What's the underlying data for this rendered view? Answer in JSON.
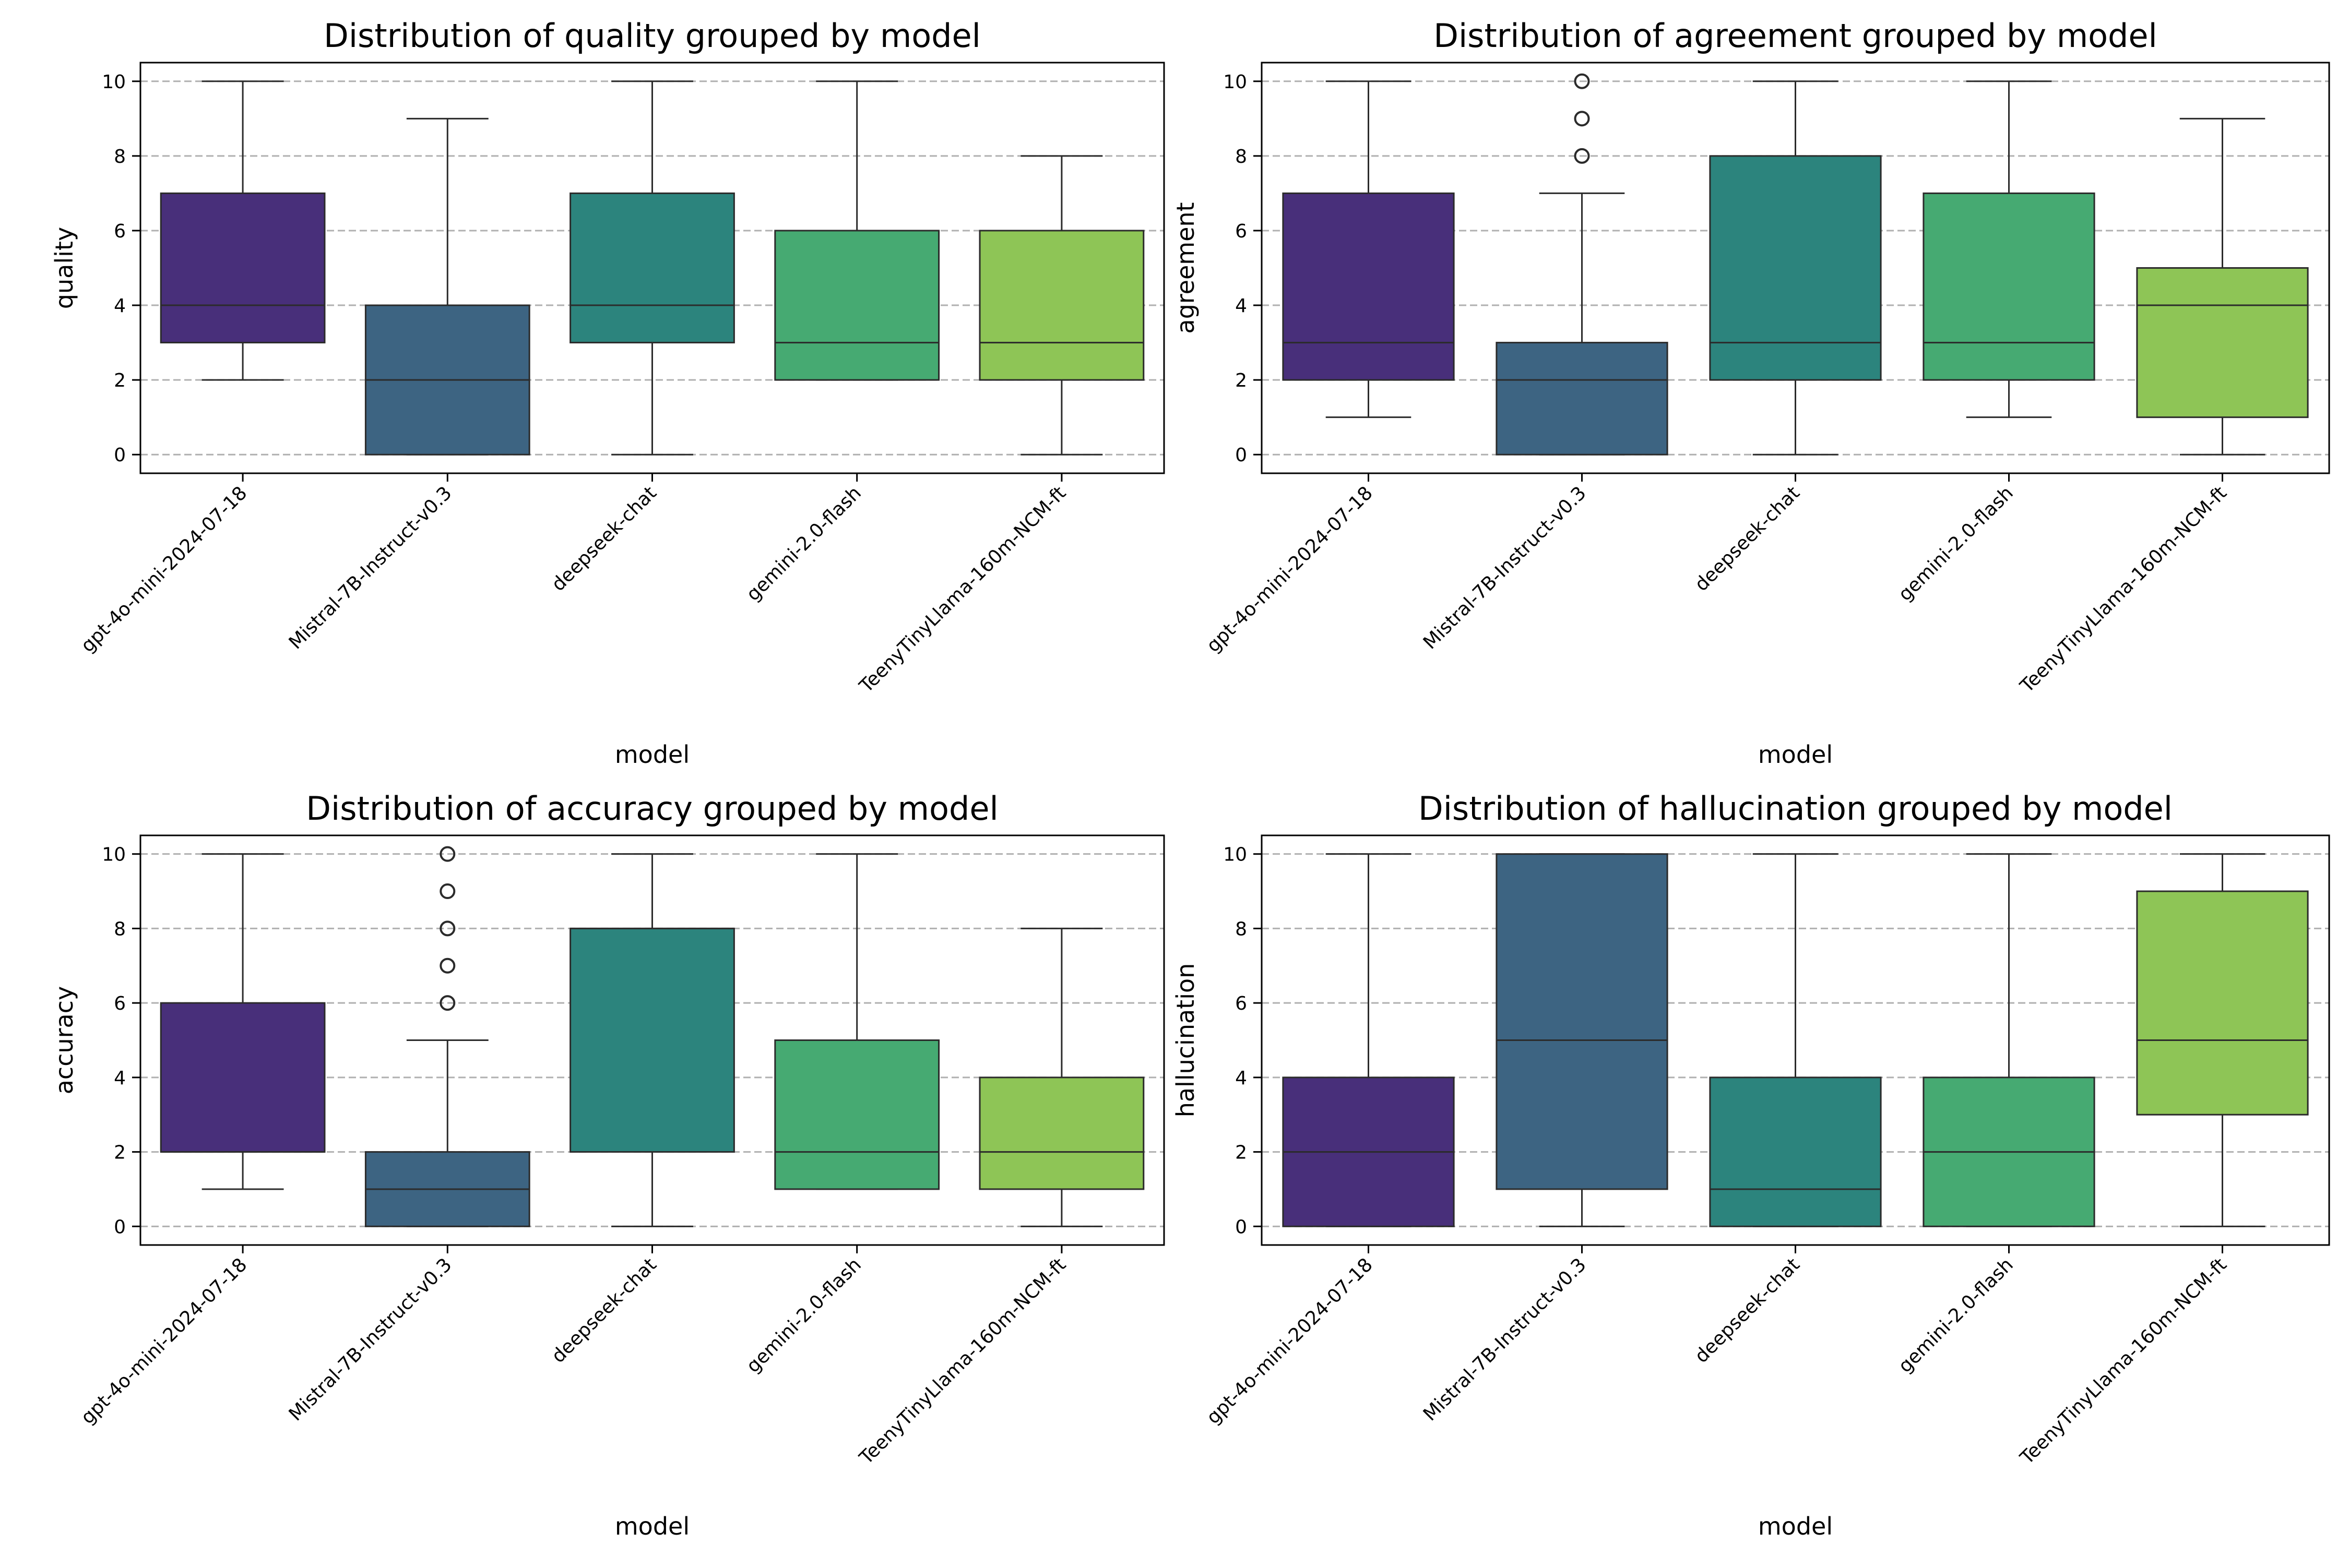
{
  "chart_data": [
    {
      "type": "box",
      "title": "Distribution of quality grouped by model",
      "xlabel": "model",
      "ylabel": "quality",
      "ylim": [
        -0.5,
        10.5
      ],
      "yticks": [
        0,
        2,
        4,
        6,
        8,
        10
      ],
      "grid": "y-dashed",
      "categories": [
        "gpt-4o-mini-2024-07-18",
        "Mistral-7B-Instruct-v0.3",
        "deepseek-chat",
        "gemini-2.0-flash",
        "TeenyTinyLlama-160m-NCM-ft"
      ],
      "boxes": [
        {
          "whisker_low": 2,
          "q1": 3,
          "median": 4,
          "q3": 7,
          "whisker_high": 10,
          "outliers": []
        },
        {
          "whisker_low": 0,
          "q1": 0,
          "median": 2,
          "q3": 4,
          "whisker_high": 9,
          "outliers": []
        },
        {
          "whisker_low": 0,
          "q1": 3,
          "median": 4,
          "q3": 7,
          "whisker_high": 10,
          "outliers": []
        },
        {
          "whisker_low": 2,
          "q1": 2,
          "median": 3,
          "q3": 6,
          "whisker_high": 10,
          "outliers": []
        },
        {
          "whisker_low": 0,
          "q1": 2,
          "median": 3,
          "q3": 6,
          "whisker_high": 8,
          "outliers": []
        }
      ]
    },
    {
      "type": "box",
      "title": "Distribution of agreement grouped by model",
      "xlabel": "model",
      "ylabel": "agreement",
      "ylim": [
        -0.5,
        10.5
      ],
      "yticks": [
        0,
        2,
        4,
        6,
        8,
        10
      ],
      "grid": "y-dashed",
      "categories": [
        "gpt-4o-mini-2024-07-18",
        "Mistral-7B-Instruct-v0.3",
        "deepseek-chat",
        "gemini-2.0-flash",
        "TeenyTinyLlama-160m-NCM-ft"
      ],
      "boxes": [
        {
          "whisker_low": 1,
          "q1": 2,
          "median": 3,
          "q3": 7,
          "whisker_high": 10,
          "outliers": []
        },
        {
          "whisker_low": 0,
          "q1": 0,
          "median": 2,
          "q3": 3,
          "whisker_high": 7,
          "outliers": [
            8,
            9,
            10
          ]
        },
        {
          "whisker_low": 0,
          "q1": 2,
          "median": 3,
          "q3": 8,
          "whisker_high": 10,
          "outliers": []
        },
        {
          "whisker_low": 1,
          "q1": 2,
          "median": 3,
          "q3": 7,
          "whisker_high": 10,
          "outliers": []
        },
        {
          "whisker_low": 0,
          "q1": 1,
          "median": 4,
          "q3": 5,
          "whisker_high": 9,
          "outliers": []
        }
      ]
    },
    {
      "type": "box",
      "title": "Distribution of accuracy grouped by model",
      "xlabel": "model",
      "ylabel": "accuracy",
      "ylim": [
        -0.5,
        10.5
      ],
      "yticks": [
        0,
        2,
        4,
        6,
        8,
        10
      ],
      "grid": "y-dashed",
      "categories": [
        "gpt-4o-mini-2024-07-18",
        "Mistral-7B-Instruct-v0.3",
        "deepseek-chat",
        "gemini-2.0-flash",
        "TeenyTinyLlama-160m-NCM-ft"
      ],
      "boxes": [
        {
          "whisker_low": 1,
          "q1": 2,
          "median": 2,
          "q3": 6,
          "whisker_high": 10,
          "outliers": []
        },
        {
          "whisker_low": 0,
          "q1": 0,
          "median": 1,
          "q3": 2,
          "whisker_high": 5,
          "outliers": [
            6,
            7,
            8,
            9,
            10
          ]
        },
        {
          "whisker_low": 0,
          "q1": 2,
          "median": 8,
          "q3": 8,
          "whisker_high": 10,
          "outliers": []
        },
        {
          "whisker_low": 1,
          "q1": 1,
          "median": 2,
          "q3": 5,
          "whisker_high": 10,
          "outliers": []
        },
        {
          "whisker_low": 0,
          "q1": 1,
          "median": 2,
          "q3": 4,
          "whisker_high": 8,
          "outliers": []
        }
      ]
    },
    {
      "type": "box",
      "title": "Distribution of hallucination grouped by model",
      "xlabel": "model",
      "ylabel": "hallucination",
      "ylim": [
        -0.5,
        10.5
      ],
      "yticks": [
        0,
        2,
        4,
        6,
        8,
        10
      ],
      "grid": "y-dashed",
      "categories": [
        "gpt-4o-mini-2024-07-18",
        "Mistral-7B-Instruct-v0.3",
        "deepseek-chat",
        "gemini-2.0-flash",
        "TeenyTinyLlama-160m-NCM-ft"
      ],
      "boxes": [
        {
          "whisker_low": 0,
          "q1": 0,
          "median": 2,
          "q3": 4,
          "whisker_high": 10,
          "outliers": []
        },
        {
          "whisker_low": 0,
          "q1": 1,
          "median": 5,
          "q3": 10,
          "whisker_high": 10,
          "outliers": []
        },
        {
          "whisker_low": 0,
          "q1": 0,
          "median": 1,
          "q3": 4,
          "whisker_high": 10,
          "outliers": []
        },
        {
          "whisker_low": 0,
          "q1": 0,
          "median": 2,
          "q3": 4,
          "whisker_high": 10,
          "outliers": []
        },
        {
          "whisker_low": 0,
          "q1": 3,
          "median": 5,
          "q3": 9,
          "whisker_high": 10,
          "outliers": []
        }
      ]
    }
  ],
  "palette": [
    "#482f7a",
    "#3d6482",
    "#2c847d",
    "#46aa72",
    "#8ec556"
  ]
}
